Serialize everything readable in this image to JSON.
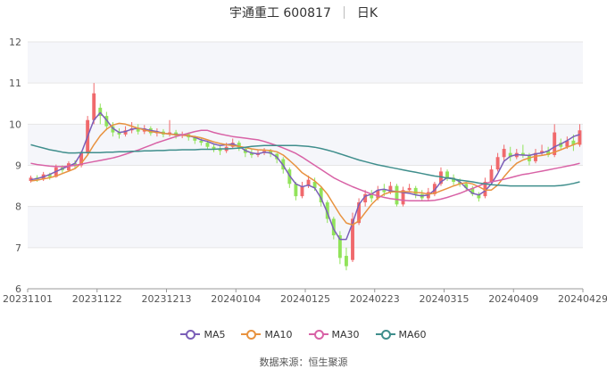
{
  "header": {
    "name": "宇通重工 600817",
    "period": "日K"
  },
  "source": "数据来源：恒生聚源",
  "colors": {
    "up": "#f0696c",
    "down": "#91e35a",
    "ma5": "#7b5fb8",
    "ma10": "#e8923f",
    "ma30": "#d862a6",
    "ma60": "#3f8e8c",
    "grid": "#e6e6e6",
    "band": "#f5f6fa"
  },
  "chart_data": {
    "type": "candlestick",
    "ylim": [
      6,
      12
    ],
    "yticks": [
      6,
      7,
      8,
      9,
      10,
      11,
      12
    ],
    "xtick_labels": [
      "20231101",
      "20231122",
      "20231213",
      "20240104",
      "20240125",
      "20240223",
      "20240315",
      "20240409",
      "20240429"
    ],
    "ma_series": [
      {
        "name": "MA5",
        "color": "#7b5fb8",
        "values": [
          8.65,
          8.68,
          8.72,
          8.78,
          8.85,
          8.92,
          8.98,
          9.05,
          9.3,
          9.7,
          10.1,
          10.28,
          10.1,
          9.9,
          9.8,
          9.82,
          9.88,
          9.9,
          9.88,
          9.85,
          9.82,
          9.78,
          9.76,
          9.75,
          9.74,
          9.72,
          9.68,
          9.62,
          9.58,
          9.52,
          9.48,
          9.5,
          9.52,
          9.46,
          9.36,
          9.3,
          9.28,
          9.32,
          9.3,
          9.2,
          9.0,
          8.75,
          8.55,
          8.48,
          8.52,
          8.45,
          8.2,
          7.85,
          7.45,
          7.2,
          7.2,
          7.6,
          8.05,
          8.25,
          8.3,
          8.4,
          8.42,
          8.38,
          8.36,
          8.34,
          8.32,
          8.28,
          8.26,
          8.28,
          8.4,
          8.6,
          8.7,
          8.68,
          8.6,
          8.45,
          8.32,
          8.28,
          8.38,
          8.55,
          8.8,
          9.1,
          9.22,
          9.26,
          9.25,
          9.24,
          9.28,
          9.3,
          9.35,
          9.45,
          9.52,
          9.6,
          9.7,
          9.75
        ]
      },
      {
        "name": "MA10",
        "color": "#e8923f",
        "values": [
          8.62,
          8.64,
          8.67,
          8.7,
          8.74,
          8.8,
          8.86,
          8.92,
          9.05,
          9.25,
          9.5,
          9.72,
          9.88,
          9.98,
          10.02,
          10.0,
          9.95,
          9.9,
          9.86,
          9.82,
          9.8,
          9.78,
          9.76,
          9.74,
          9.73,
          9.72,
          9.7,
          9.67,
          9.62,
          9.57,
          9.53,
          9.5,
          9.48,
          9.46,
          9.43,
          9.4,
          9.38,
          9.37,
          9.36,
          9.33,
          9.25,
          9.12,
          8.98,
          8.82,
          8.72,
          8.62,
          8.48,
          8.3,
          8.05,
          7.8,
          7.6,
          7.55,
          7.65,
          7.85,
          8.05,
          8.2,
          8.3,
          8.35,
          8.36,
          8.36,
          8.36,
          8.34,
          8.33,
          8.3,
          8.32,
          8.38,
          8.44,
          8.5,
          8.55,
          8.58,
          8.55,
          8.48,
          8.4,
          8.4,
          8.52,
          8.72,
          8.9,
          9.05,
          9.13,
          9.18,
          9.22,
          9.24,
          9.27,
          9.32,
          9.38,
          9.44,
          9.5,
          9.56
        ]
      },
      {
        "name": "MA30",
        "color": "#d862a6",
        "values": [
          9.05,
          9.02,
          9.0,
          8.98,
          8.97,
          8.97,
          8.98,
          9.0,
          9.03,
          9.06,
          9.09,
          9.12,
          9.15,
          9.18,
          9.22,
          9.27,
          9.32,
          9.37,
          9.43,
          9.49,
          9.55,
          9.6,
          9.65,
          9.7,
          9.74,
          9.78,
          9.82,
          9.85,
          9.85,
          9.8,
          9.76,
          9.73,
          9.7,
          9.68,
          9.66,
          9.64,
          9.62,
          9.58,
          9.53,
          9.48,
          9.42,
          9.36,
          9.29,
          9.2,
          9.1,
          9.0,
          8.9,
          8.8,
          8.7,
          8.62,
          8.55,
          8.48,
          8.42,
          8.36,
          8.3,
          8.26,
          8.22,
          8.19,
          8.17,
          8.15,
          8.14,
          8.14,
          8.14,
          8.14,
          8.15,
          8.18,
          8.22,
          8.27,
          8.32,
          8.38,
          8.44,
          8.5,
          8.56,
          8.6,
          8.63,
          8.66,
          8.7,
          8.74,
          8.78,
          8.8,
          8.83,
          8.86,
          8.89,
          8.92,
          8.95,
          8.98,
          9.01,
          9.05
        ]
      },
      {
        "name": "MA60",
        "color": "#3f8e8c",
        "values": [
          9.5,
          9.46,
          9.42,
          9.38,
          9.35,
          9.32,
          9.3,
          9.3,
          9.31,
          9.31,
          9.31,
          9.31,
          9.32,
          9.32,
          9.33,
          9.33,
          9.34,
          9.34,
          9.35,
          9.35,
          9.36,
          9.36,
          9.37,
          9.37,
          9.38,
          9.38,
          9.38,
          9.39,
          9.39,
          9.39,
          9.4,
          9.4,
          9.41,
          9.42,
          9.44,
          9.46,
          9.47,
          9.48,
          9.48,
          9.48,
          9.48,
          9.48,
          9.48,
          9.47,
          9.46,
          9.44,
          9.41,
          9.37,
          9.33,
          9.28,
          9.23,
          9.18,
          9.13,
          9.09,
          9.05,
          9.01,
          8.98,
          8.95,
          8.92,
          8.89,
          8.86,
          8.83,
          8.8,
          8.77,
          8.74,
          8.72,
          8.69,
          8.67,
          8.64,
          8.62,
          8.6,
          8.57,
          8.55,
          8.53,
          8.52,
          8.51,
          8.5,
          8.5,
          8.5,
          8.5,
          8.5,
          8.5,
          8.5,
          8.5,
          8.51,
          8.53,
          8.56,
          8.6
        ]
      }
    ],
    "candles": [
      [
        8.62,
        8.7,
        8.58,
        8.75
      ],
      [
        8.7,
        8.66,
        8.6,
        8.76
      ],
      [
        8.66,
        8.78,
        8.62,
        8.84
      ],
      [
        8.78,
        8.72,
        8.65,
        8.82
      ],
      [
        8.72,
        8.95,
        8.7,
        9.02
      ],
      [
        8.95,
        8.88,
        8.82,
        9.0
      ],
      [
        8.88,
        9.05,
        8.85,
        9.1
      ],
      [
        9.05,
        8.98,
        8.92,
        9.12
      ],
      [
        9.0,
        9.3,
        8.95,
        9.35
      ],
      [
        9.3,
        10.1,
        9.25,
        10.2
      ],
      [
        10.1,
        10.75,
        10.0,
        11.0
      ],
      [
        10.4,
        10.2,
        10.0,
        10.5
      ],
      [
        10.2,
        9.95,
        9.85,
        10.3
      ],
      [
        9.95,
        9.8,
        9.7,
        10.05
      ],
      [
        9.8,
        9.75,
        9.65,
        9.9
      ],
      [
        9.75,
        9.85,
        9.7,
        9.95
      ],
      [
        9.85,
        9.9,
        9.78,
        10.05
      ],
      [
        9.9,
        9.82,
        9.75,
        10.0
      ],
      [
        9.82,
        9.9,
        9.76,
        9.98
      ],
      [
        9.9,
        9.78,
        9.72,
        9.95
      ],
      [
        9.78,
        9.82,
        9.7,
        9.9
      ],
      [
        9.82,
        9.75,
        9.68,
        9.88
      ],
      [
        9.75,
        9.8,
        9.7,
        10.1
      ],
      [
        9.8,
        9.72,
        9.65,
        9.86
      ],
      [
        9.72,
        9.76,
        9.66,
        9.82
      ],
      [
        9.76,
        9.68,
        9.6,
        9.8
      ],
      [
        9.68,
        9.6,
        9.52,
        9.72
      ],
      [
        9.6,
        9.55,
        9.48,
        9.66
      ],
      [
        9.55,
        9.45,
        9.38,
        9.6
      ],
      [
        9.45,
        9.4,
        9.32,
        9.52
      ],
      [
        9.4,
        9.35,
        9.25,
        9.5
      ],
      [
        9.35,
        9.45,
        9.3,
        9.55
      ],
      [
        9.45,
        9.55,
        9.4,
        9.65
      ],
      [
        9.55,
        9.4,
        9.35,
        9.6
      ],
      [
        9.4,
        9.3,
        9.2,
        9.45
      ],
      [
        9.3,
        9.25,
        9.18,
        9.4
      ],
      [
        9.25,
        9.3,
        9.2,
        9.38
      ],
      [
        9.3,
        9.35,
        9.25,
        9.42
      ],
      [
        9.35,
        9.28,
        9.2,
        9.4
      ],
      [
        9.28,
        9.15,
        9.05,
        9.3
      ],
      [
        9.15,
        8.9,
        8.8,
        9.2
      ],
      [
        8.9,
        8.55,
        8.45,
        8.95
      ],
      [
        8.55,
        8.25,
        8.15,
        8.6
      ],
      [
        8.25,
        8.5,
        8.2,
        8.6
      ],
      [
        8.5,
        8.65,
        8.45,
        8.75
      ],
      [
        8.6,
        8.45,
        8.38,
        8.7
      ],
      [
        8.45,
        8.1,
        8.0,
        8.5
      ],
      [
        8.1,
        7.7,
        7.6,
        8.15
      ],
      [
        7.7,
        7.3,
        7.2,
        7.75
      ],
      [
        7.3,
        6.75,
        6.6,
        7.4
      ],
      [
        6.8,
        6.55,
        6.45,
        7.0
      ],
      [
        6.7,
        7.7,
        6.65,
        7.85
      ],
      [
        7.6,
        8.1,
        7.55,
        8.2
      ],
      [
        8.1,
        8.3,
        8.0,
        8.4
      ],
      [
        8.3,
        8.2,
        8.1,
        8.4
      ],
      [
        8.2,
        8.4,
        8.15,
        8.5
      ],
      [
        8.4,
        8.35,
        8.25,
        8.55
      ],
      [
        8.35,
        8.5,
        8.3,
        8.6
      ],
      [
        8.5,
        8.05,
        8.0,
        8.55
      ],
      [
        8.05,
        8.4,
        8.0,
        8.48
      ],
      [
        8.4,
        8.45,
        8.35,
        8.55
      ],
      [
        8.45,
        8.3,
        8.2,
        8.5
      ],
      [
        8.3,
        8.2,
        8.15,
        8.4
      ],
      [
        8.2,
        8.35,
        8.15,
        8.45
      ],
      [
        8.3,
        8.55,
        8.25,
        8.6
      ],
      [
        8.55,
        8.85,
        8.5,
        8.95
      ],
      [
        8.85,
        8.7,
        8.62,
        8.9
      ],
      [
        8.7,
        8.6,
        8.52,
        8.78
      ],
      [
        8.6,
        8.55,
        8.48,
        8.68
      ],
      [
        8.55,
        8.45,
        8.38,
        8.6
      ],
      [
        8.45,
        8.3,
        8.25,
        8.5
      ],
      [
        8.3,
        8.2,
        8.12,
        8.35
      ],
      [
        8.25,
        8.6,
        8.2,
        8.7
      ],
      [
        8.6,
        8.9,
        8.55,
        9.0
      ],
      [
        8.9,
        9.2,
        8.85,
        9.3
      ],
      [
        9.2,
        9.4,
        9.1,
        9.5
      ],
      [
        9.3,
        9.2,
        9.1,
        9.45
      ],
      [
        9.2,
        9.3,
        9.15,
        9.4
      ],
      [
        9.3,
        9.25,
        9.18,
        9.5
      ],
      [
        9.25,
        9.1,
        9.0,
        9.3
      ],
      [
        9.1,
        9.3,
        9.05,
        9.4
      ],
      [
        9.3,
        9.35,
        9.25,
        9.5
      ],
      [
        9.35,
        9.25,
        9.2,
        9.45
      ],
      [
        9.25,
        9.8,
        9.2,
        10.0
      ],
      [
        9.55,
        9.45,
        9.4,
        9.65
      ],
      [
        9.45,
        9.6,
        9.4,
        9.7
      ],
      [
        9.6,
        9.5,
        9.35,
        9.75
      ],
      [
        9.5,
        9.85,
        9.45,
        10.0
      ]
    ]
  }
}
